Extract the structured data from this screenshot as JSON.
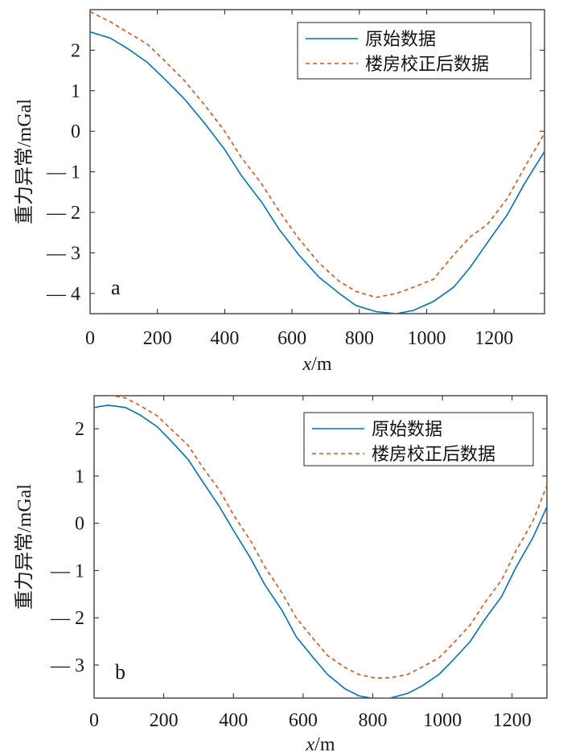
{
  "chart_data": [
    {
      "type": "line",
      "panel_label": "a",
      "ylabel": "重力异常/mGal",
      "xlabel_var": "x",
      "xlabel_unit": "/m",
      "xlim": [
        0,
        1350
      ],
      "ylim": [
        -4.5,
        3
      ],
      "xticks": [
        0,
        200,
        400,
        600,
        800,
        1000,
        1200
      ],
      "yticks": [
        2,
        1,
        0,
        -1,
        -2,
        -3,
        -4
      ],
      "ytick_labels": [
        "2",
        "1",
        "0",
        "— 1",
        "— 2",
        "— 3",
        "— 4"
      ],
      "legend_position": "top-right",
      "series": [
        {
          "name": "原始数据",
          "color": "#0072BD",
          "style": "solid",
          "x": [
            0,
            60,
            110,
            170,
            220,
            280,
            340,
            400,
            450,
            510,
            560,
            620,
            680,
            740,
            790,
            850,
            910,
            960,
            1020,
            1080,
            1130,
            1180,
            1240,
            1290,
            1350
          ],
          "y": [
            2.45,
            2.3,
            2.05,
            1.7,
            1.3,
            0.8,
            0.2,
            -0.45,
            -1.1,
            -1.75,
            -2.4,
            -3.05,
            -3.6,
            -4.0,
            -4.3,
            -4.45,
            -4.5,
            -4.42,
            -4.2,
            -3.85,
            -3.35,
            -2.75,
            -2.05,
            -1.3,
            -0.5
          ]
        },
        {
          "name": "楼房校正后数据",
          "color": "#D95319",
          "style": "dashed",
          "x": [
            0,
            60,
            110,
            170,
            220,
            280,
            340,
            400,
            450,
            510,
            560,
            620,
            680,
            740,
            790,
            850,
            910,
            960,
            1020,
            1080,
            1130,
            1180,
            1240,
            1290,
            1350
          ],
          "y": [
            2.95,
            2.7,
            2.45,
            2.15,
            1.75,
            1.25,
            0.65,
            0.0,
            -0.65,
            -1.3,
            -1.95,
            -2.65,
            -3.25,
            -3.7,
            -3.95,
            -4.1,
            -4.0,
            -3.85,
            -3.65,
            -3.05,
            -2.6,
            -2.3,
            -1.65,
            -0.9,
            -0.05
          ]
        }
      ]
    },
    {
      "type": "line",
      "panel_label": "b",
      "ylabel": "重力异常/mGal",
      "xlabel_var": "x",
      "xlabel_unit": "/m",
      "xlim": [
        0,
        1300
      ],
      "ylim": [
        -3.7,
        2.7
      ],
      "xticks": [
        0,
        200,
        400,
        600,
        800,
        1000,
        1200
      ],
      "yticks": [
        2,
        1,
        0,
        -1,
        -2,
        -3
      ],
      "ytick_labels": [
        "2",
        "1",
        "0",
        "— 1",
        "— 2",
        "— 3"
      ],
      "legend_position": "top-right",
      "series": [
        {
          "name": "原始数据",
          "color": "#0072BD",
          "style": "solid",
          "x": [
            0,
            40,
            90,
            130,
            180,
            220,
            270,
            310,
            360,
            400,
            450,
            490,
            540,
            580,
            630,
            670,
            720,
            760,
            810,
            850,
            900,
            940,
            990,
            1030,
            1080,
            1120,
            1170,
            1210,
            1260,
            1300
          ],
          "y": [
            2.45,
            2.5,
            2.45,
            2.3,
            2.05,
            1.75,
            1.35,
            0.9,
            0.35,
            -0.15,
            -0.75,
            -1.3,
            -1.85,
            -2.4,
            -2.85,
            -3.2,
            -3.5,
            -3.65,
            -3.72,
            -3.7,
            -3.6,
            -3.45,
            -3.2,
            -2.9,
            -2.5,
            -2.05,
            -1.55,
            -0.95,
            -0.3,
            0.35
          ]
        },
        {
          "name": "楼房校正后数据",
          "color": "#D95319",
          "style": "dashed",
          "x": [
            0,
            40,
            90,
            130,
            180,
            220,
            270,
            310,
            360,
            400,
            450,
            490,
            540,
            580,
            630,
            670,
            720,
            760,
            810,
            850,
            900,
            940,
            990,
            1030,
            1080,
            1120,
            1170,
            1210,
            1260,
            1300
          ],
          "y": [
            2.72,
            2.72,
            2.65,
            2.5,
            2.28,
            2.0,
            1.65,
            1.2,
            0.7,
            0.18,
            -0.38,
            -0.92,
            -1.48,
            -2.0,
            -2.45,
            -2.8,
            -3.05,
            -3.2,
            -3.28,
            -3.27,
            -3.2,
            -3.05,
            -2.85,
            -2.55,
            -2.15,
            -1.7,
            -1.2,
            -0.6,
            0.05,
            0.8
          ]
        }
      ]
    }
  ]
}
